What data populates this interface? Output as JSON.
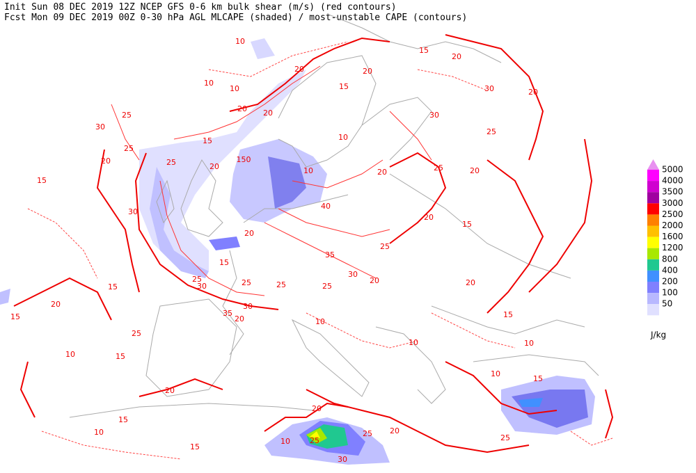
{
  "header": {
    "line1": "Init  Sun 08 DEC 2019 12Z  NCEP GFS 0-6 km bulk shear (m/s) (red contours)",
    "line2": "Fcst Mon 09 DEC 2019 00Z 0-30 hPa AGL MLCAPE (shaded) / most-unstable CAPE (contours)"
  },
  "legend": {
    "over_color": "#e890f0",
    "levels": [
      {
        "label": 5000,
        "color": "#ff00ff"
      },
      {
        "label": 4000,
        "color": "#d000d0"
      },
      {
        "label": 3500,
        "color": "#a000a0"
      },
      {
        "label": 3000,
        "color": "#ff0000"
      },
      {
        "label": 2500,
        "color": "#ff8000"
      },
      {
        "label": 2000,
        "color": "#ffc000"
      },
      {
        "label": 1600,
        "color": "#ffff00"
      },
      {
        "label": 1200,
        "color": "#a8e800"
      },
      {
        "label": 800,
        "color": "#20c890"
      },
      {
        "label": 400,
        "color": "#4090ff"
      },
      {
        "label": 200,
        "color": "#8080ff"
      },
      {
        "label": 100,
        "color": "#b8b8ff"
      },
      {
        "label": 50,
        "color": "#e0e0ff"
      }
    ],
    "unit": "J/kg"
  },
  "map": {
    "contour_labels": [
      "10",
      "10",
      "10",
      "15",
      "20",
      "15",
      "20",
      "30",
      "20",
      "30",
      "25",
      "25",
      "20",
      "15",
      "20",
      "25",
      "20",
      "30",
      "35",
      "25",
      "25",
      "25",
      "30",
      "35",
      "20",
      "15",
      "25",
      "30",
      "30",
      "25",
      "20",
      "30",
      "25",
      "15",
      "15",
      "20",
      "15",
      "25",
      "10",
      "15",
      "20",
      "15",
      "10",
      "15",
      "20",
      "10",
      "25",
      "25",
      "20",
      "30",
      "10",
      "10",
      "25",
      "15",
      "10",
      "10",
      "15",
      "20",
      "20",
      "40",
      "10",
      "10",
      "150",
      "20",
      "20",
      "20",
      "15",
      "20",
      "25",
      "20"
    ]
  }
}
